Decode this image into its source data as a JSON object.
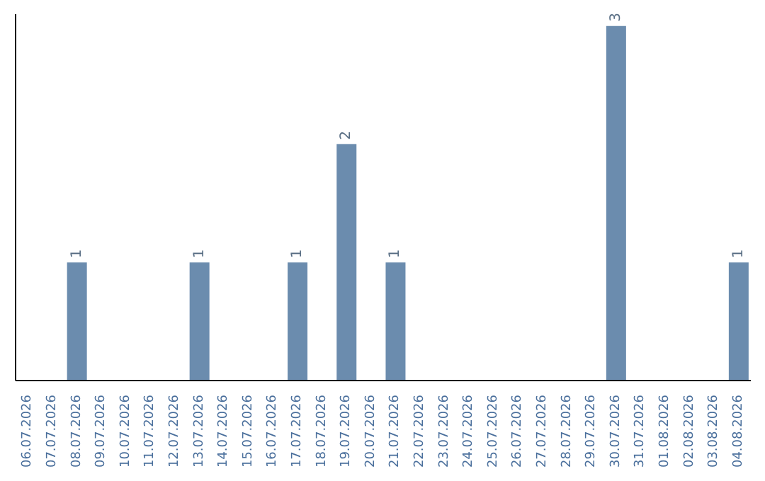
{
  "chart_data": {
    "type": "bar",
    "categories": [
      "06.07.2026",
      "07.07.2026",
      "08.07.2026",
      "09.07.2026",
      "10.07.2026",
      "11.07.2026",
      "12.07.2026",
      "13.07.2026",
      "14.07.2026",
      "15.07.2026",
      "16.07.2026",
      "17.07.2026",
      "18.07.2026",
      "19.07.2026",
      "20.07.2026",
      "21.07.2026",
      "22.07.2026",
      "23.07.2026",
      "24.07.2026",
      "25.07.2026",
      "26.07.2026",
      "27.07.2026",
      "28.07.2026",
      "29.07.2026",
      "30.07.2026",
      "31.07.2026",
      "01.08.2026",
      "02.08.2026",
      "03.08.2026",
      "04.08.2026"
    ],
    "values": [
      0,
      0,
      1,
      0,
      0,
      0,
      0,
      1,
      0,
      0,
      0,
      1,
      0,
      2,
      0,
      1,
      0,
      0,
      0,
      0,
      0,
      0,
      0,
      0,
      3,
      0,
      0,
      0,
      0,
      1
    ],
    "value_labels": [
      null,
      null,
      "1",
      null,
      null,
      null,
      null,
      "1",
      null,
      null,
      null,
      "1",
      null,
      "2",
      null,
      "1",
      null,
      null,
      null,
      null,
      null,
      null,
      null,
      null,
      "3",
      null,
      null,
      null,
      null,
      "1"
    ],
    "color": "#6b8cae",
    "ylim": [
      0,
      3.1
    ],
    "tick_labels": "x",
    "grid": false,
    "legend": false
  }
}
